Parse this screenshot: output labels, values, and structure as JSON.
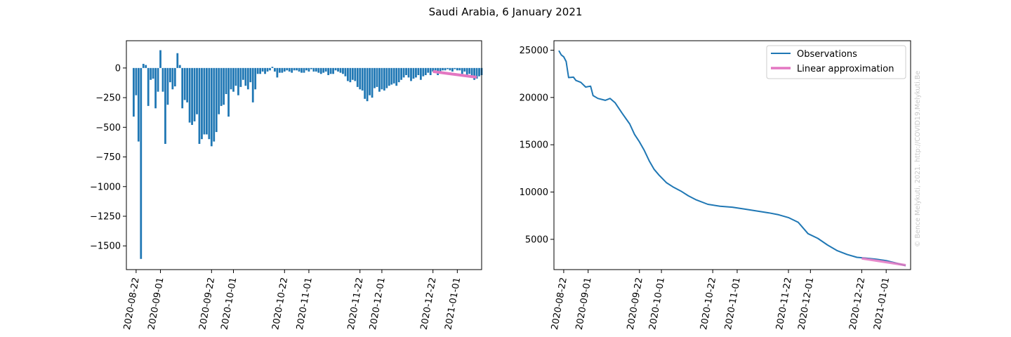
{
  "figure": {
    "title": "Saudi Arabia, 6 January 2021",
    "watermark": "© Bence Melykuti, 2021. http://COVID19.Melykuti.Be"
  },
  "colors": {
    "series": "#1f77b4",
    "approximation": "#e377c2",
    "axes": "#000000",
    "watermark": "#c8c8c8"
  },
  "chart_data": [
    {
      "type": "bar",
      "title": "",
      "xlabel": "",
      "ylabel": "",
      "x_range": [
        "2020-08-18",
        "2021-01-11"
      ],
      "ylim": [
        -1700,
        230
      ],
      "grid": false,
      "x_ticks": [
        "2020-08-22",
        "2020-09-01",
        "2020-09-22",
        "2020-10-01",
        "2020-10-22",
        "2020-11-01",
        "2020-11-22",
        "2020-12-01",
        "2020-12-22",
        "2021-01-01"
      ],
      "y_ticks": [
        0,
        -250,
        -500,
        -750,
        -1000,
        -1250,
        -1500
      ],
      "y_tick_labels": [
        "0",
        "−250",
        "−500",
        "−750",
        "−1000",
        "−1250",
        "−1500"
      ],
      "start_date": "2020-08-21",
      "values": [
        -410,
        -230,
        -620,
        -1610,
        35,
        25,
        -320,
        -100,
        -90,
        -340,
        -200,
        150,
        -200,
        -640,
        -310,
        -120,
        -180,
        -155,
        125,
        25,
        -340,
        -270,
        -290,
        -460,
        -480,
        -450,
        -390,
        -640,
        -600,
        -560,
        -560,
        -600,
        -660,
        -620,
        -540,
        -390,
        -320,
        -310,
        -220,
        -410,
        -180,
        -200,
        -150,
        -230,
        -160,
        -100,
        -150,
        -180,
        -120,
        -290,
        -180,
        -50,
        -50,
        -30,
        -50,
        -30,
        -20,
        10,
        -30,
        -80,
        -40,
        -40,
        -30,
        -20,
        -30,
        -40,
        -20,
        -20,
        -30,
        -40,
        -40,
        -20,
        -30,
        -10,
        -30,
        -30,
        -40,
        -50,
        -40,
        -30,
        -60,
        -50,
        -50,
        -20,
        -30,
        -40,
        -50,
        -70,
        -110,
        -120,
        -100,
        -110,
        -160,
        -180,
        -190,
        -260,
        -280,
        -230,
        -250,
        -170,
        -160,
        -200,
        -180,
        -190,
        -170,
        -150,
        -140,
        -130,
        -150,
        -120,
        -100,
        -80,
        -60,
        -80,
        -110,
        -90,
        -80,
        -60,
        -100,
        -70,
        -60,
        -40,
        -60,
        -30,
        -20,
        -60,
        -30,
        -20,
        -20,
        -10,
        -20,
        -30,
        -10,
        -20,
        -20,
        -50,
        -30,
        -60,
        -50,
        -80,
        -100,
        -90,
        -70,
        -60
      ],
      "series": [
        {
          "name": "",
          "type": "line",
          "x": [
            "2020-12-22",
            "2021-01-09"
          ],
          "y": [
            -30,
            -78
          ]
        }
      ]
    },
    {
      "type": "line",
      "title": "",
      "xlabel": "",
      "ylabel": "",
      "x_range": [
        "2020-08-18",
        "2021-01-11"
      ],
      "ylim": [
        1800,
        26000
      ],
      "grid": false,
      "legend_position": "top-right",
      "x_ticks": [
        "2020-08-22",
        "2020-09-01",
        "2020-09-22",
        "2020-10-01",
        "2020-10-22",
        "2020-11-01",
        "2020-11-22",
        "2020-12-01",
        "2020-12-22",
        "2021-01-01"
      ],
      "y_ticks": [
        5000,
        10000,
        15000,
        20000,
        25000
      ],
      "y_tick_labels": [
        "5000",
        "10000",
        "15000",
        "20000",
        "25000"
      ],
      "series": [
        {
          "name": "Observations",
          "x": [
            "2020-08-20",
            "2020-08-21",
            "2020-08-22",
            "2020-08-23",
            "2020-08-24",
            "2020-08-26",
            "2020-08-27",
            "2020-08-29",
            "2020-08-31",
            "2020-09-02",
            "2020-09-03",
            "2020-09-05",
            "2020-09-08",
            "2020-09-10",
            "2020-09-12",
            "2020-09-15",
            "2020-09-18",
            "2020-09-20",
            "2020-09-22",
            "2020-09-24",
            "2020-09-26",
            "2020-09-28",
            "2020-09-30",
            "2020-10-03",
            "2020-10-06",
            "2020-10-09",
            "2020-10-12",
            "2020-10-15",
            "2020-10-20",
            "2020-10-25",
            "2020-10-30",
            "2020-11-04",
            "2020-11-09",
            "2020-11-14",
            "2020-11-18",
            "2020-11-22",
            "2020-11-26",
            "2020-11-30",
            "2020-12-04",
            "2020-12-08",
            "2020-12-12",
            "2020-12-16",
            "2020-12-20",
            "2020-12-24",
            "2020-12-28",
            "2021-01-01",
            "2021-01-05",
            "2021-01-09"
          ],
          "y": [
            24950,
            24500,
            24300,
            23800,
            22100,
            22150,
            21800,
            21600,
            21100,
            21200,
            20200,
            19900,
            19700,
            19900,
            19450,
            18300,
            17200,
            16100,
            15300,
            14400,
            13300,
            12400,
            11800,
            11000,
            10500,
            10100,
            9600,
            9200,
            8700,
            8500,
            8400,
            8200,
            8000,
            7800,
            7600,
            7300,
            6800,
            5600,
            5100,
            4400,
            3800,
            3400,
            3100,
            3000,
            2900,
            2750,
            2500,
            2200
          ]
        },
        {
          "name": "Linear approximation",
          "x": [
            "2020-12-22",
            "2021-01-09"
          ],
          "y": [
            2990,
            2270
          ]
        }
      ]
    }
  ]
}
